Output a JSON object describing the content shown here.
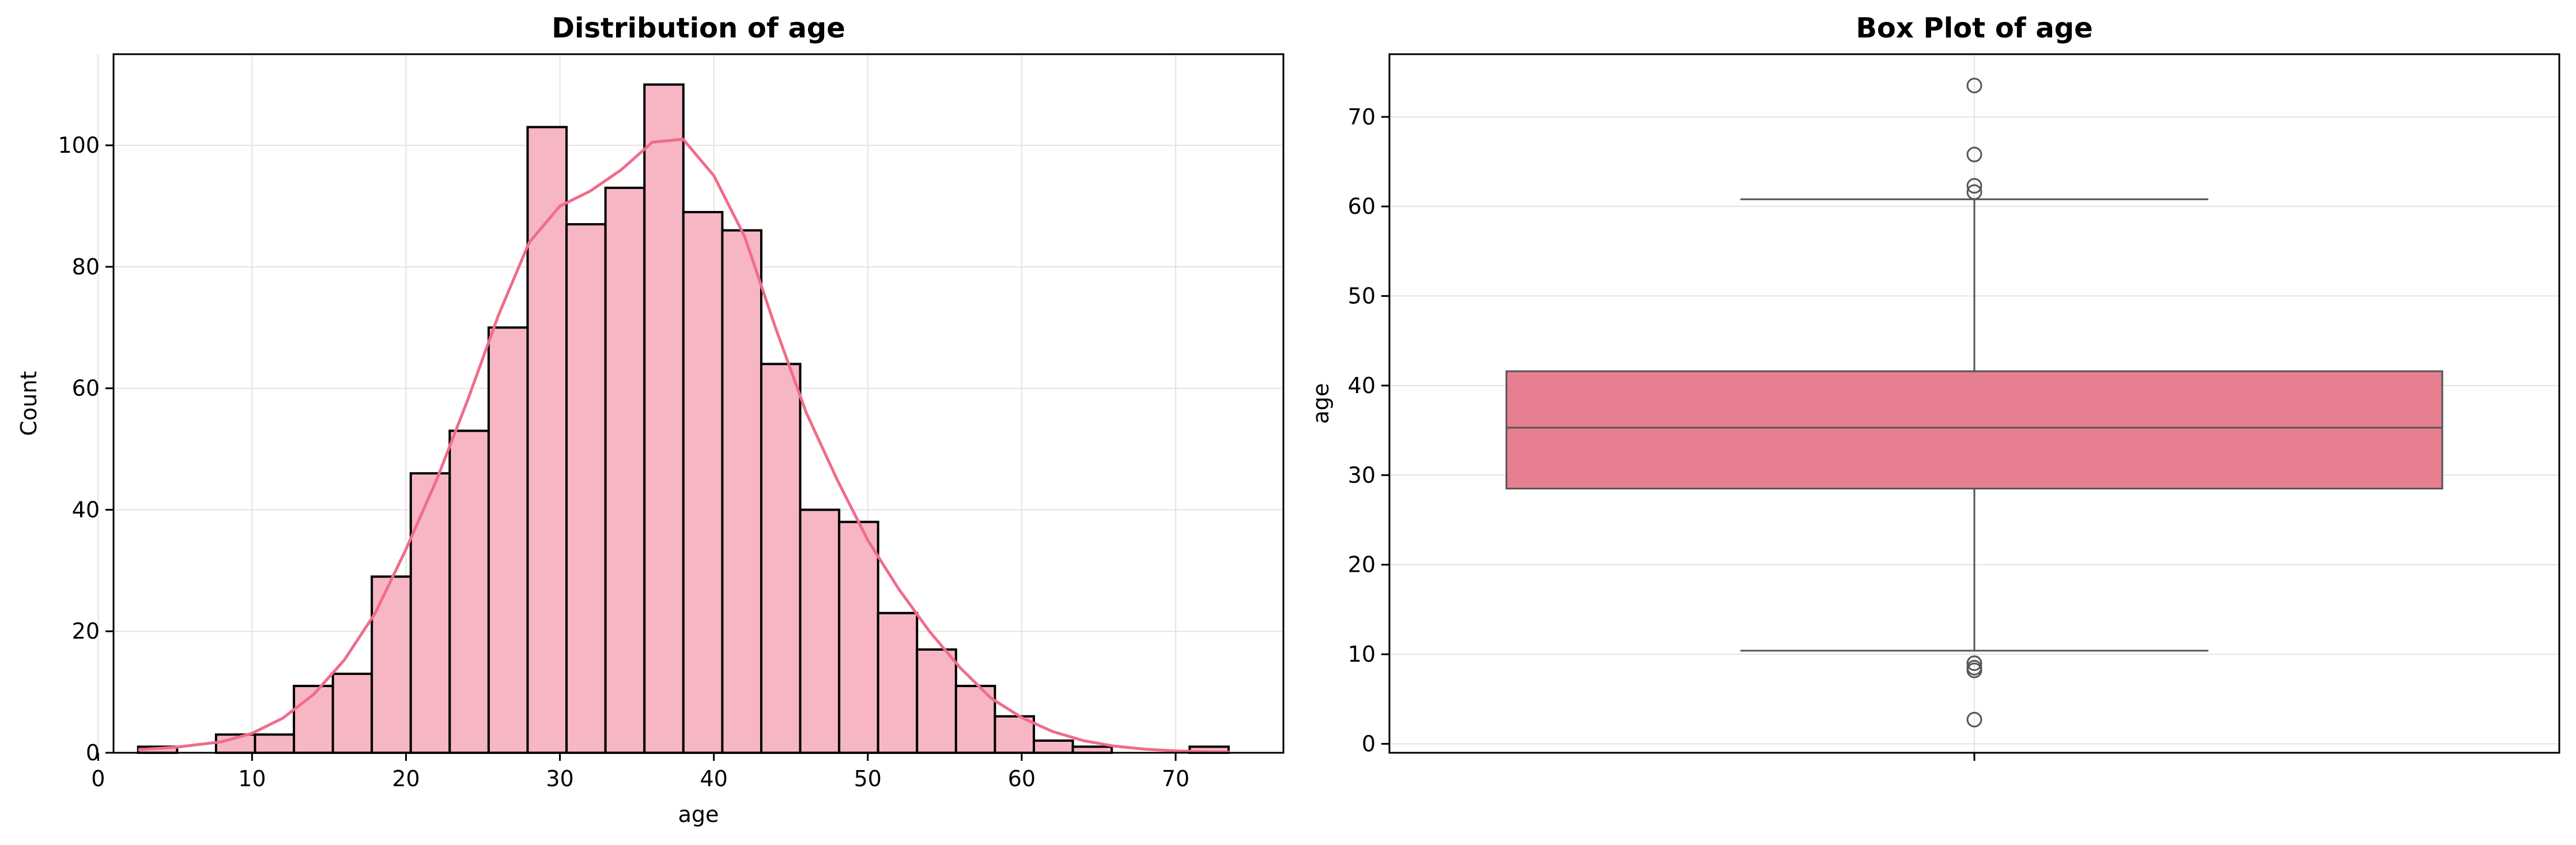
{
  "chart_data": [
    {
      "type": "bar",
      "title": "Distribution of age",
      "xlabel": "age",
      "ylabel": "Count",
      "xlim": [
        1.0,
        77.0
      ],
      "ylim": [
        0,
        115
      ],
      "xticks": [
        0,
        10,
        20,
        30,
        40,
        50,
        60,
        70
      ],
      "yticks": [
        0,
        20,
        40,
        60,
        80,
        100
      ],
      "grid": true,
      "bar_color": "#f7b6c4",
      "edge_color": "#000000",
      "kde_color": "#f06c8a",
      "bins": {
        "start": 2.6,
        "width": 2.53,
        "counts": [
          1,
          0,
          3,
          3,
          11,
          13,
          29,
          46,
          53,
          70,
          103,
          87,
          93,
          110,
          89,
          86,
          64,
          40,
          38,
          23,
          17,
          11,
          6,
          2,
          1,
          0,
          0,
          1
        ]
      },
      "kde": {
        "x": [
          2.6,
          5,
          8,
          10,
          12,
          14,
          16,
          18,
          20,
          22,
          24,
          26,
          28,
          30,
          32,
          34,
          36,
          38,
          40,
          42,
          44,
          46,
          48,
          50,
          52,
          54,
          56,
          58,
          60,
          62,
          64,
          66,
          68,
          70,
          72,
          73.5
        ],
        "y": [
          0.5,
          0.9,
          1.8,
          3.2,
          5.7,
          9.6,
          15.3,
          23,
          33.5,
          45,
          58,
          72,
          84,
          90,
          92.5,
          96,
          100.5,
          101,
          95,
          85,
          70,
          56,
          45,
          35,
          27,
          20,
          14,
          9,
          5.8,
          3.5,
          2,
          1.1,
          0.6,
          0.3,
          0.15,
          0.1
        ]
      }
    },
    {
      "type": "box",
      "title": "Box Plot of age",
      "xlabel": "",
      "ylabel": "age",
      "ylim": [
        -1,
        77
      ],
      "yticks": [
        0,
        10,
        20,
        30,
        40,
        50,
        60,
        70
      ],
      "grid": true,
      "box_color": "#e67f90",
      "line_color": "#555555",
      "q1": 28.5,
      "median": 35.3,
      "q3": 41.6,
      "whisker_low": 10.4,
      "whisker_high": 60.8,
      "outliers": [
        73.5,
        65.8,
        62.3,
        61.6,
        9.0,
        8.5,
        8.2,
        2.7
      ]
    }
  ]
}
